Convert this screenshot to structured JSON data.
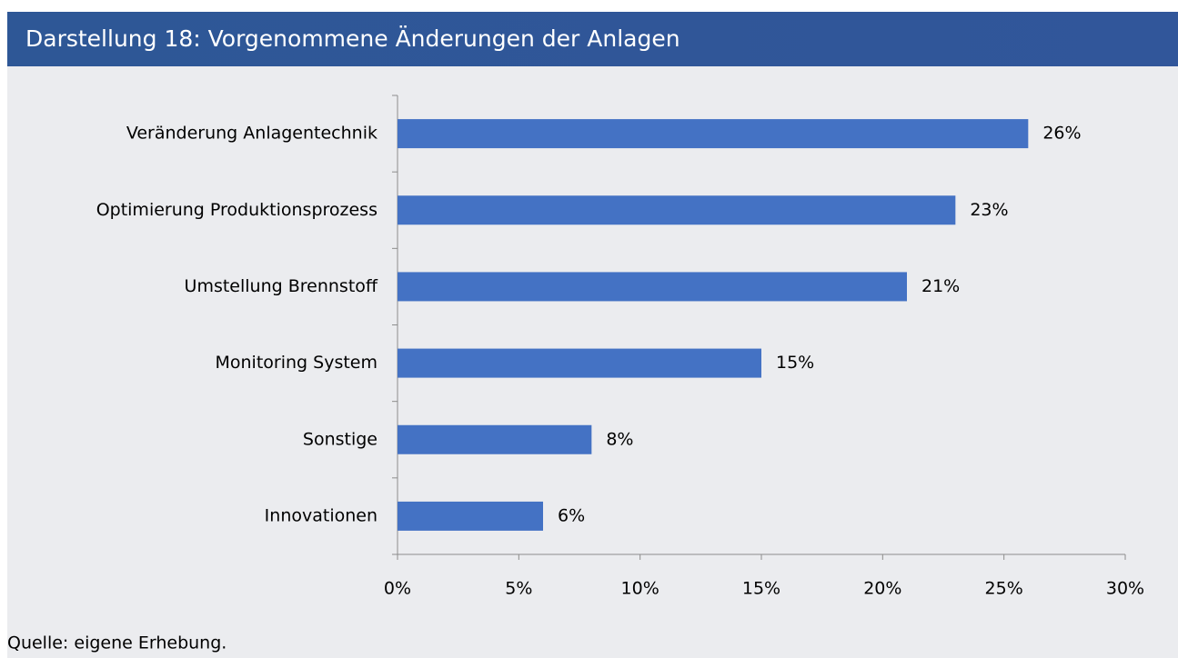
{
  "chart_data": {
    "type": "bar",
    "orientation": "horizontal",
    "title": "Darstellung 18: Vorgenommene Änderungen der Anlagen",
    "source": "Quelle: eigene Erhebung.",
    "categories": [
      "Veränderung Anlagentechnik",
      "Optimierung Produktionsprozess",
      "Umstellung Brennstoff",
      "Monitoring System",
      "Sonstige",
      "Innovationen"
    ],
    "values": [
      26,
      23,
      21,
      15,
      8,
      6
    ],
    "value_labels": [
      "26%",
      "23%",
      "21%",
      "15%",
      "8%",
      "6%"
    ],
    "color": "#4472c4",
    "xlim": [
      0,
      30
    ],
    "xticks": [
      {
        "value": 0,
        "label": "0%"
      },
      {
        "value": 5,
        "label": "5%"
      },
      {
        "value": 10,
        "label": "10%"
      },
      {
        "value": 15,
        "label": "15%"
      },
      {
        "value": 20,
        "label": "20%"
      },
      {
        "value": 25,
        "label": "25%"
      },
      {
        "value": 30,
        "label": "30%"
      }
    ],
    "grid": false
  }
}
